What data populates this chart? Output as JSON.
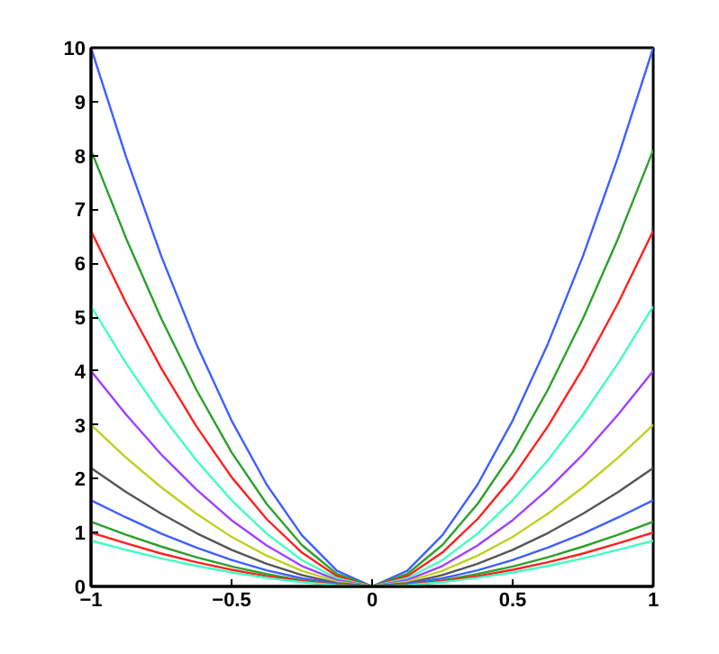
{
  "chart_data": {
    "type": "line",
    "x": [
      -1,
      -0.875,
      -0.75,
      -0.625,
      -0.5,
      -0.375,
      -0.25,
      -0.125,
      0,
      0.125,
      0.25,
      0.375,
      0.5,
      0.625,
      0.75,
      0.875,
      1
    ],
    "series": [
      {
        "color": "#3f5fff",
        "values": [
          10,
          7.97,
          6.13,
          4.5,
          3.08,
          1.89,
          0.95,
          0.29,
          0,
          0.29,
          0.95,
          1.89,
          3.08,
          4.5,
          6.13,
          7.97,
          10
        ]
      },
      {
        "color": "#2ca02c",
        "values": [
          8.1,
          6.46,
          4.97,
          3.65,
          2.49,
          1.53,
          0.77,
          0.23,
          0,
          0.23,
          0.77,
          1.53,
          2.49,
          3.65,
          4.97,
          6.46,
          8.1
        ]
      },
      {
        "color": "#ff2020",
        "values": [
          6.6,
          5.26,
          4.05,
          2.97,
          2.03,
          1.25,
          0.63,
          0.19,
          0,
          0.19,
          0.63,
          1.25,
          2.03,
          2.97,
          4.05,
          5.26,
          6.6
        ]
      },
      {
        "color": "#40ffc0",
        "values": [
          5.2,
          4.14,
          3.19,
          2.34,
          1.6,
          0.98,
          0.49,
          0.15,
          0,
          0.15,
          0.49,
          0.98,
          1.6,
          2.34,
          3.19,
          4.14,
          5.2
        ]
      },
      {
        "color": "#a040ff",
        "values": [
          4,
          3.19,
          2.45,
          1.8,
          1.23,
          0.76,
          0.38,
          0.12,
          0,
          0.12,
          0.38,
          0.76,
          1.23,
          1.8,
          2.45,
          3.19,
          4
        ]
      },
      {
        "color": "#c0d020",
        "values": [
          3,
          2.39,
          1.84,
          1.35,
          0.92,
          0.57,
          0.29,
          0.09,
          0,
          0.09,
          0.29,
          0.57,
          0.92,
          1.35,
          1.84,
          2.39,
          3
        ]
      },
      {
        "color": "#555555",
        "values": [
          2.2,
          1.75,
          1.35,
          0.99,
          0.68,
          0.42,
          0.21,
          0.06,
          0,
          0.06,
          0.21,
          0.42,
          0.68,
          0.99,
          1.35,
          1.75,
          2.2
        ]
      },
      {
        "color": "#3f5fff",
        "values": [
          1.6,
          1.28,
          0.98,
          0.72,
          0.49,
          0.3,
          0.15,
          0.05,
          0,
          0.05,
          0.15,
          0.3,
          0.49,
          0.72,
          0.98,
          1.28,
          1.6
        ]
      },
      {
        "color": "#2ca02c",
        "values": [
          1.2,
          0.96,
          0.74,
          0.54,
          0.37,
          0.23,
          0.11,
          0.03,
          0,
          0.03,
          0.11,
          0.23,
          0.37,
          0.54,
          0.74,
          0.96,
          1.2
        ]
      },
      {
        "color": "#ff2020",
        "values": [
          1,
          0.8,
          0.61,
          0.45,
          0.31,
          0.19,
          0.1,
          0.03,
          0,
          0.03,
          0.1,
          0.19,
          0.31,
          0.45,
          0.61,
          0.8,
          1
        ]
      },
      {
        "color": "#40ffc0",
        "values": [
          0.85,
          0.68,
          0.52,
          0.38,
          0.26,
          0.16,
          0.08,
          0.02,
          0,
          0.02,
          0.08,
          0.16,
          0.26,
          0.38,
          0.52,
          0.68,
          0.85
        ]
      }
    ],
    "xlim": [
      -1,
      1
    ],
    "ylim": [
      0,
      10
    ],
    "xticks": [
      -1,
      -0.5,
      0,
      0.5,
      1
    ],
    "yticks": [
      0,
      1,
      2,
      3,
      4,
      5,
      6,
      7,
      8,
      9,
      10
    ],
    "grid": false
  }
}
